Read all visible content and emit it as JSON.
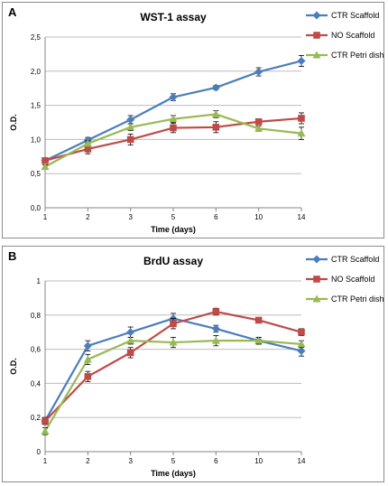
{
  "chart_data": [
    {
      "type": "line",
      "panel_label": "A",
      "title": "WST-1 assay",
      "xlabel": "Time (days)",
      "ylabel": "O.D.",
      "categories": [
        "1",
        "2",
        "3",
        "5",
        "6",
        "10",
        "14"
      ],
      "ylim": [
        0,
        2.5
      ],
      "yticks": [
        "0,0",
        "0,5",
        "1,0",
        "1,5",
        "2,0",
        "2,5"
      ],
      "grid": true,
      "legend_position": "right",
      "series": [
        {
          "name": "CTR Scaffold",
          "color": "#4a7ebb",
          "marker": "diamond",
          "values": [
            0.69,
            0.99,
            1.29,
            1.62,
            1.76,
            1.99,
            2.15
          ],
          "errors": [
            0.03,
            0.04,
            0.06,
            0.05,
            0.03,
            0.06,
            0.08
          ]
        },
        {
          "name": "NO Scaffold",
          "color": "#be4b48",
          "marker": "square",
          "values": [
            0.69,
            0.86,
            1.0,
            1.17,
            1.18,
            1.26,
            1.31
          ],
          "errors": [
            0.03,
            0.07,
            0.08,
            0.07,
            0.08,
            0.04,
            0.08
          ]
        },
        {
          "name": "CTR Petri dish",
          "color": "#98b954",
          "marker": "triangle",
          "values": [
            0.6,
            0.94,
            1.18,
            1.3,
            1.37,
            1.16,
            1.09
          ],
          "errors": [
            0.03,
            0.04,
            0.05,
            0.05,
            0.05,
            0.04,
            0.09
          ]
        }
      ]
    },
    {
      "type": "line",
      "panel_label": "B",
      "title": "BrdU assay",
      "xlabel": "Time (days)",
      "ylabel": "O.D.",
      "categories": [
        "1",
        "2",
        "3",
        "5",
        "6",
        "10",
        "14"
      ],
      "ylim": [
        0,
        1
      ],
      "yticks": [
        "0",
        "0,2",
        "0,4",
        "0,6",
        "0,8",
        "1"
      ],
      "grid": true,
      "legend_position": "right",
      "series": [
        {
          "name": "CTR Scaffold",
          "color": "#4a7ebb",
          "marker": "diamond",
          "values": [
            0.18,
            0.62,
            0.7,
            0.78,
            0.72,
            0.65,
            0.59
          ],
          "errors": [
            0.02,
            0.03,
            0.03,
            0.03,
            0.02,
            0.02,
            0.03
          ]
        },
        {
          "name": "NO Scaffold",
          "color": "#be4b48",
          "marker": "square",
          "values": [
            0.18,
            0.44,
            0.58,
            0.75,
            0.82,
            0.77,
            0.7
          ],
          "errors": [
            0.02,
            0.03,
            0.03,
            0.03,
            0.02,
            0.01,
            0.02
          ]
        },
        {
          "name": "CTR Petri dish",
          "color": "#98b954",
          "marker": "triangle",
          "values": [
            0.12,
            0.54,
            0.65,
            0.64,
            0.65,
            0.65,
            0.63
          ],
          "errors": [
            0.02,
            0.03,
            0.02,
            0.03,
            0.03,
            0.02,
            0.02
          ]
        }
      ]
    }
  ]
}
